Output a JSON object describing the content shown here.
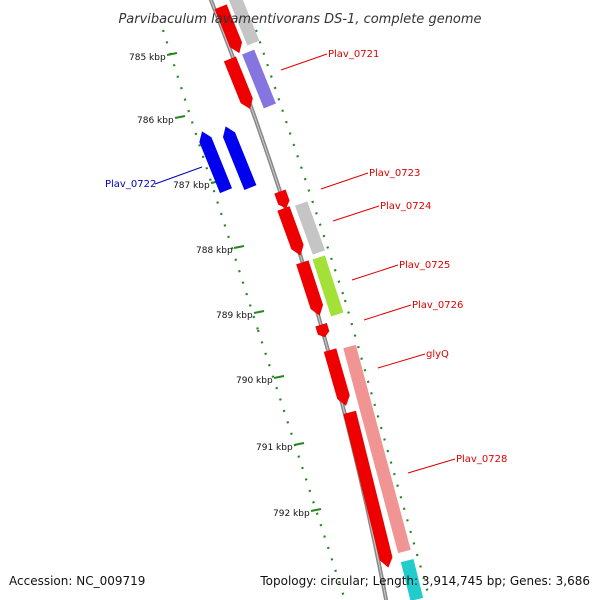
{
  "title": "Parvibaculum lavamentivorans DS-1, complete genome",
  "footer": {
    "accession": "Accession: NC_009719",
    "topology": "Topology: circular; Length: 3,914,745 bp; Genes: 3,686"
  },
  "ruler": {
    "unit": "kbp",
    "ticks": [
      {
        "value": 785,
        "label": "785 kbp"
      },
      {
        "value": 786,
        "label": "786 kbp"
      },
      {
        "value": 787,
        "label": "787 kbp"
      },
      {
        "value": 788,
        "label": "788 kbp"
      },
      {
        "value": 789,
        "label": "789 kbp"
      },
      {
        "value": 790,
        "label": "790 kbp"
      },
      {
        "value": 791,
        "label": "791 kbp"
      },
      {
        "value": 792,
        "label": "792 kbp"
      }
    ]
  },
  "colors": {
    "backbone": "#888888",
    "cds": "#ee0000",
    "gene_gray": "#bbbbbb",
    "gene_purple": "#7766dd",
    "gene_blue": "#0000ee",
    "gene_lime": "#99dd22",
    "gene_pink": "#ee8888",
    "gene_cyan": "#22cccc",
    "tick_green": "#228822",
    "label_red": "#dd0000",
    "label_blue": "#0000bb"
  },
  "genes": [
    {
      "label": "Plav_0721",
      "color": "#dd0000"
    },
    {
      "label": "Plav_0722",
      "color": "#0000bb"
    },
    {
      "label": "Plav_0723",
      "color": "#dd0000"
    },
    {
      "label": "Plav_0724",
      "color": "#dd0000"
    },
    {
      "label": "Plav_0725",
      "color": "#dd0000"
    },
    {
      "label": "Plav_0726",
      "color": "#dd0000"
    },
    {
      "label": "glyQ",
      "color": "#dd0000"
    },
    {
      "label": "Plav_0728",
      "color": "#dd0000"
    }
  ]
}
